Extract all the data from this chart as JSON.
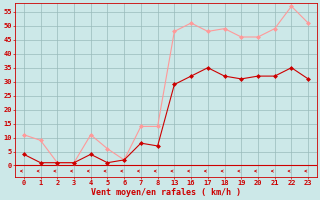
{
  "xlabel": "Vent moyen/en rafales ( km/h )",
  "background_color": "#cce8e8",
  "grid_color": "#99bbbb",
  "y_ticks": [
    0,
    5,
    10,
    15,
    20,
    25,
    30,
    35,
    40,
    45,
    50,
    55
  ],
  "ylim": [
    -4,
    58
  ],
  "line1_x": [
    0,
    1,
    2,
    3,
    4,
    5,
    6,
    7,
    8,
    13,
    16,
    17,
    18,
    19,
    20,
    21,
    22,
    23
  ],
  "line1_y": [
    4,
    1,
    1,
    1,
    4,
    1,
    2,
    8,
    7,
    29,
    32,
    35,
    32,
    31,
    32,
    32,
    35,
    31
  ],
  "line2_x": [
    0,
    1,
    2,
    3,
    4,
    5,
    6,
    7,
    8,
    13,
    16,
    17,
    18,
    19,
    20,
    21,
    22,
    23
  ],
  "line2_y": [
    11,
    9,
    1,
    1,
    11,
    6,
    2,
    14,
    14,
    48,
    51,
    48,
    49,
    46,
    46,
    49,
    57,
    51
  ],
  "line1_color": "#cc0000",
  "line2_color": "#ff9999",
  "marker_size": 2.5,
  "font_color": "#cc0000",
  "tick_labels": [
    "0",
    "1",
    "2",
    "3",
    "4",
    "5",
    "6",
    "7",
    "8",
    "13",
    "16",
    "17",
    "18",
    "19",
    "20",
    "21",
    "22",
    "23"
  ],
  "x_positions": [
    0,
    1,
    2,
    3,
    4,
    5,
    6,
    7,
    8,
    13,
    16,
    17,
    18,
    19,
    20,
    21,
    22,
    23
  ]
}
